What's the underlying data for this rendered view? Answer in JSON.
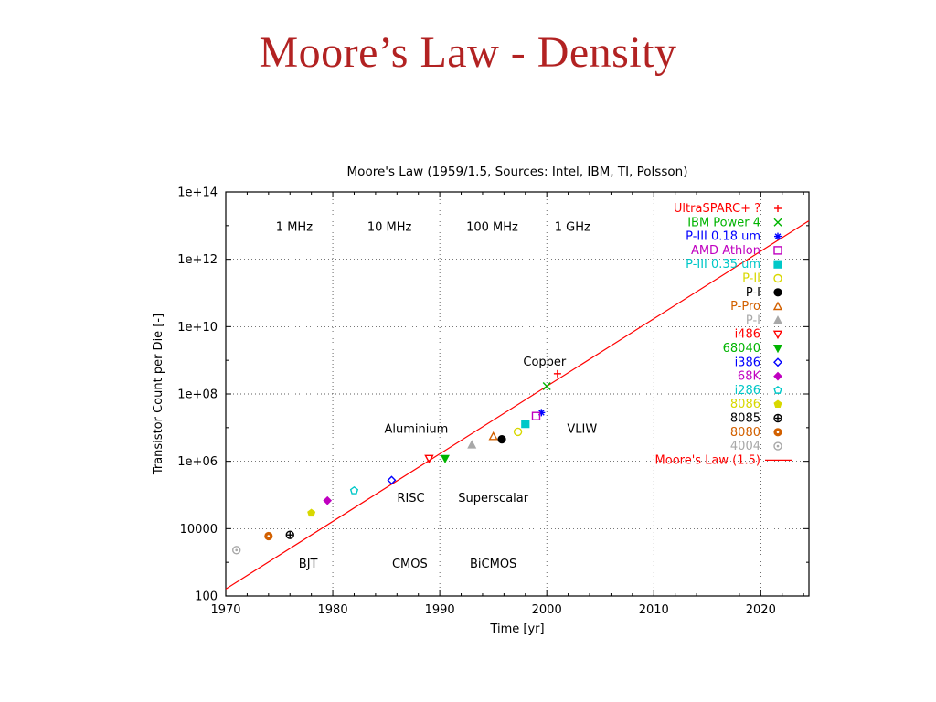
{
  "slide": {
    "title": "Moore’s Law - Density",
    "title_color": "#b22222",
    "background": "#ffffff"
  },
  "chart_data": {
    "type": "scatter",
    "title": "Moore's Law (1959/1.5, Sources: Intel, IBM, TI, Polsson)",
    "xlabel": "Time [yr]",
    "ylabel": "Transistor Count per Die [-]",
    "x_range": [
      1970,
      2024.5
    ],
    "y_log_range": [
      2,
      14
    ],
    "x_ticks": [
      1970,
      1980,
      1990,
      2000,
      2010,
      2020
    ],
    "x_minor_step": 2,
    "y_ticks": [
      {
        "label": "100",
        "log10": 2
      },
      {
        "label": "10000",
        "log10": 4
      },
      {
        "label": "1e+06",
        "log10": 6
      },
      {
        "label": "1e+08",
        "log10": 8
      },
      {
        "label": "1e+10",
        "log10": 10
      },
      {
        "label": "1e+12",
        "log10": 12
      },
      {
        "label": "1e+14",
        "log10": 14
      }
    ],
    "y_minor_step": 1,
    "grid": true,
    "legend_position": "top-right",
    "line": {
      "label": "Moore's Law (1.5)",
      "color": "#ff0000",
      "start_year": 1959,
      "doubling_years": 1.5
    },
    "series": [
      {
        "name": "UltraSPARC+ ?",
        "color": "#ff0000",
        "marker": "plus",
        "filled": false,
        "points": [
          [
            2001,
            400000000.0
          ]
        ]
      },
      {
        "name": "IBM Power 4",
        "color": "#00b400",
        "marker": "cross",
        "filled": false,
        "points": [
          [
            2000,
            170000000.0
          ]
        ]
      },
      {
        "name": "P-III 0.18 um",
        "color": "#0000ff",
        "marker": "asterisk",
        "filled": false,
        "points": [
          [
            1999.5,
            28000000.0
          ]
        ]
      },
      {
        "name": "AMD Athlon",
        "color": "#c000c0",
        "marker": "square",
        "filled": false,
        "points": [
          [
            1999,
            22000000.0
          ]
        ]
      },
      {
        "name": "P-III 0.35 um",
        "color": "#00c8c8",
        "marker": "square",
        "filled": true,
        "points": [
          [
            1998,
            13000000.0
          ]
        ]
      },
      {
        "name": "P-II",
        "color": "#d8d800",
        "marker": "circle",
        "filled": false,
        "points": [
          [
            1997.3,
            7500000.0
          ]
        ]
      },
      {
        "name": "P-I",
        "color": "#000000",
        "marker": "circle",
        "filled": true,
        "points": [
          [
            1995.8,
            4500000.0
          ]
        ]
      },
      {
        "name": "P-Pro",
        "color": "#d26000",
        "marker": "triangle",
        "filled": false,
        "points": [
          [
            1995,
            5500000.0
          ]
        ]
      },
      {
        "name": "P-I",
        "color": "#a8a8a8",
        "marker": "triangle",
        "filled": true,
        "points": [
          [
            1993,
            3100000.0
          ]
        ]
      },
      {
        "name": "i486",
        "color": "#ff0000",
        "marker": "invtriangle",
        "filled": false,
        "points": [
          [
            1989,
            1200000.0
          ]
        ]
      },
      {
        "name": "68040",
        "color": "#00b400",
        "marker": "invtriangle",
        "filled": true,
        "points": [
          [
            1990.5,
            1200000.0
          ]
        ]
      },
      {
        "name": "i386",
        "color": "#0000ff",
        "marker": "diamond",
        "filled": false,
        "points": [
          [
            1985.5,
            275000.0
          ]
        ]
      },
      {
        "name": "68K",
        "color": "#c000c0",
        "marker": "diamond",
        "filled": true,
        "points": [
          [
            1979.5,
            68000.0
          ]
        ]
      },
      {
        "name": "i286",
        "color": "#00c8c8",
        "marker": "pentagon",
        "filled": false,
        "points": [
          [
            1982,
            134000.0
          ]
        ]
      },
      {
        "name": "8086",
        "color": "#d8d800",
        "marker": "pentagon",
        "filled": true,
        "points": [
          [
            1978,
            29000.0
          ]
        ]
      },
      {
        "name": "8085",
        "color": "#000000",
        "marker": "circleplus",
        "filled": false,
        "points": [
          [
            1976,
            6500.0
          ]
        ]
      },
      {
        "name": "8080",
        "color": "#d26000",
        "marker": "circledot",
        "filled": true,
        "points": [
          [
            1974,
            6000.0
          ]
        ]
      },
      {
        "name": "4004",
        "color": "#a8a8a8",
        "marker": "circledot",
        "filled": false,
        "points": [
          [
            1971,
            2300.0
          ]
        ]
      }
    ],
    "annotations": [
      {
        "text": "1 MHz",
        "year": 1976.4,
        "value": 7000000000000.0
      },
      {
        "text": "10 MHz",
        "year": 1985.3,
        "value": 7000000000000.0
      },
      {
        "text": "100 MHz",
        "year": 1994.9,
        "value": 7000000000000.0
      },
      {
        "text": "1 GHz",
        "year": 2002.4,
        "value": 7000000000000.0
      },
      {
        "text": "Copper",
        "year": 1999.8,
        "value": 700000000.0
      },
      {
        "text": "Aluminium",
        "year": 1987.8,
        "value": 7000000.0
      },
      {
        "text": "VLIW",
        "year": 2003.3,
        "value": 7000000.0
      },
      {
        "text": "RISC",
        "year": 1987.3,
        "value": 63000.0
      },
      {
        "text": "Superscalar",
        "year": 1995.0,
        "value": 63000.0
      },
      {
        "text": "BJT",
        "year": 1977.7,
        "value": 700
      },
      {
        "text": "CMOS",
        "year": 1987.2,
        "value": 700
      },
      {
        "text": "BiCMOS",
        "year": 1995.0,
        "value": 700
      }
    ]
  }
}
